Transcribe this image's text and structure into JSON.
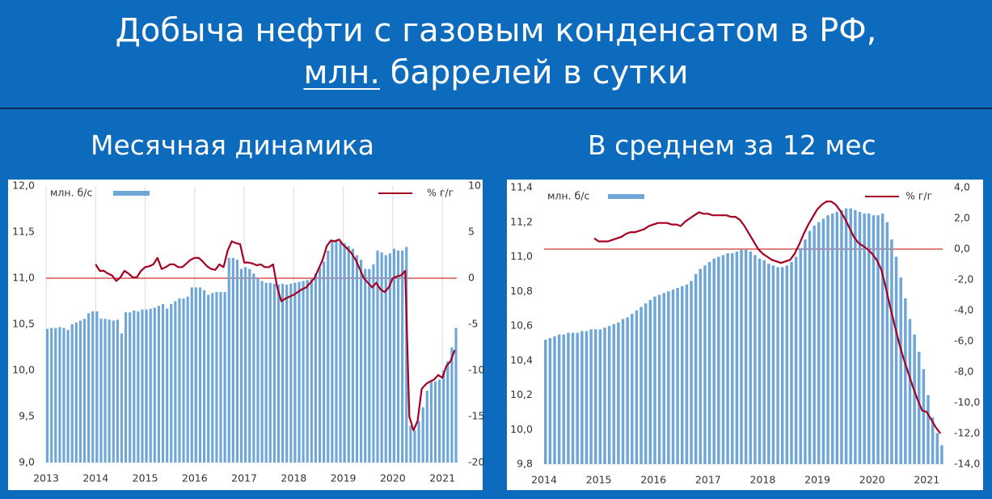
{
  "header": {
    "title_line1": "Добыча нефти с газовым конденсатом в РФ,",
    "title_unit": "млн.",
    "title_rest": "баррелей в сутки"
  },
  "chart_data": [
    {
      "type": "bar_line",
      "title": "Месячная динамика",
      "xgrid": true,
      "categories": [
        "2013",
        null,
        null,
        null,
        null,
        null,
        null,
        null,
        null,
        null,
        null,
        null,
        "2014",
        null,
        null,
        null,
        null,
        null,
        null,
        null,
        null,
        null,
        null,
        null,
        "2015",
        null,
        null,
        null,
        null,
        null,
        null,
        null,
        null,
        null,
        null,
        null,
        "2016",
        null,
        null,
        null,
        null,
        null,
        null,
        null,
        null,
        null,
        null,
        null,
        "2017",
        null,
        null,
        null,
        null,
        null,
        null,
        null,
        null,
        null,
        null,
        null,
        "2018",
        null,
        null,
        null,
        null,
        null,
        null,
        null,
        null,
        null,
        null,
        null,
        "2019",
        null,
        null,
        null,
        null,
        null,
        null,
        null,
        null,
        null,
        null,
        null,
        "2020",
        null,
        null,
        null,
        null,
        null,
        null,
        null,
        null,
        null,
        null,
        null,
        "2021",
        null,
        null,
        null
      ],
      "series": [
        {
          "name": "млн. б/с",
          "color": "#6fa6d8",
          "values": [
            10.45,
            10.46,
            10.46,
            10.47,
            10.46,
            10.44,
            10.5,
            10.52,
            10.54,
            10.56,
            10.62,
            10.64,
            10.64,
            10.56,
            10.56,
            10.55,
            10.54,
            10.55,
            10.4,
            10.63,
            10.63,
            10.65,
            10.64,
            10.66,
            10.66,
            10.67,
            10.68,
            10.7,
            10.72,
            10.67,
            10.72,
            10.75,
            10.78,
            10.78,
            10.8,
            10.9,
            10.9,
            10.9,
            10.87,
            10.82,
            10.84,
            10.85,
            10.85,
            10.85,
            11.22,
            11.22,
            11.2,
            11.1,
            11.12,
            11.1,
            11.05,
            11.0,
            10.97,
            10.95,
            10.95,
            10.94,
            10.93,
            10.94,
            10.93,
            10.94,
            10.95,
            10.96,
            10.97,
            10.98,
            10.99,
            11.05,
            11.12,
            11.18,
            11.3,
            11.4,
            11.42,
            11.4,
            11.38,
            11.35,
            11.32,
            11.25,
            11.2,
            11.1,
            11.1,
            11.15,
            11.3,
            11.28,
            11.25,
            11.27,
            11.32,
            11.3,
            11.3,
            11.34,
            9.4,
            9.35,
            9.45,
            9.6,
            9.78,
            9.88,
            9.88,
            9.9,
            10.0,
            10.1,
            10.25,
            10.46
          ]
        },
        {
          "name": "% г/г",
          "color": "#a50021",
          "axis": "y2",
          "values": [
            null,
            null,
            null,
            null,
            null,
            null,
            null,
            null,
            null,
            null,
            null,
            null,
            1.5,
            0.8,
            0.8,
            0.5,
            0.3,
            -0.3,
            0.1,
            0.8,
            0.5,
            0.1,
            0.1,
            0.8,
            1.2,
            1.3,
            1.5,
            2.2,
            1.0,
            1.2,
            1.5,
            1.5,
            1.2,
            1.2,
            1.6,
            2.0,
            2.2,
            2.2,
            1.8,
            1.3,
            1.0,
            0.9,
            1.5,
            1.2,
            3.0,
            4.0,
            3.8,
            3.7,
            1.7,
            1.7,
            1.6,
            1.4,
            1.5,
            1.2,
            1.2,
            1.5,
            -1.0,
            -2.5,
            -2.2,
            -2.0,
            -1.8,
            -1.5,
            -1.2,
            -1.0,
            -0.5,
            0.0,
            1.0,
            2.0,
            3.5,
            4.1,
            4.0,
            4.2,
            3.6,
            3.2,
            2.7,
            2.0,
            1.0,
            0.0,
            -0.5,
            -1.0,
            -0.5,
            -1.2,
            -1.5,
            -1.0,
            0.0,
            0.2,
            0.3,
            0.8,
            -15.0,
            -16.5,
            -15.5,
            -12.0,
            -11.5,
            -11.2,
            -11.0,
            -10.5,
            -10.8,
            -9.5,
            -9.0,
            -7.8
          ]
        }
      ],
      "ylim": [
        9.0,
        12.0
      ],
      "yticks": [
        {
          "value": 9.0,
          "label": "9,0"
        },
        {
          "value": 9.5,
          "label": "9,5"
        },
        {
          "value": 10.0,
          "label": "10,0"
        },
        {
          "value": 10.5,
          "label": "10,5"
        },
        {
          "value": 11.0,
          "label": "11,0"
        },
        {
          "value": 11.5,
          "label": "11,5"
        },
        {
          "value": 12.0,
          "label": "12,0"
        }
      ],
      "y2lim": [
        -20,
        10
      ],
      "y2ticks": [
        -20,
        -15,
        -10,
        -5,
        0,
        5,
        10
      ]
    },
    {
      "type": "bar_line",
      "title": "В среднем за 12 мес",
      "xgrid": false,
      "categories": [
        "2014",
        null,
        null,
        null,
        null,
        null,
        null,
        null,
        null,
        null,
        null,
        null,
        "2015",
        null,
        null,
        null,
        null,
        null,
        null,
        null,
        null,
        null,
        null,
        null,
        "2016",
        null,
        null,
        null,
        null,
        null,
        null,
        null,
        null,
        null,
        null,
        null,
        "2017",
        null,
        null,
        null,
        null,
        null,
        null,
        null,
        null,
        null,
        null,
        null,
        "2018",
        null,
        null,
        null,
        null,
        null,
        null,
        null,
        null,
        null,
        null,
        null,
        "2019",
        null,
        null,
        null,
        null,
        null,
        null,
        null,
        null,
        null,
        null,
        null,
        "2020",
        null,
        null,
        null,
        null,
        null,
        null,
        null,
        null,
        null,
        null,
        null,
        "2021",
        null,
        null,
        null
      ],
      "series": [
        {
          "name": "млн. б/с",
          "color": "#6fa6d8",
          "values": [
            10.52,
            10.53,
            10.54,
            10.55,
            10.55,
            10.56,
            10.56,
            10.56,
            10.57,
            10.57,
            10.58,
            10.58,
            10.58,
            10.59,
            10.6,
            10.61,
            10.62,
            10.64,
            10.65,
            10.67,
            10.69,
            10.71,
            10.73,
            10.75,
            10.77,
            10.78,
            10.79,
            10.8,
            10.81,
            10.82,
            10.83,
            10.84,
            10.86,
            10.9,
            10.93,
            10.95,
            10.97,
            10.99,
            11.0,
            11.01,
            11.02,
            11.02,
            11.03,
            11.04,
            11.04,
            11.03,
            11.01,
            10.99,
            10.98,
            10.96,
            10.95,
            10.94,
            10.94,
            10.95,
            10.97,
            11.0,
            11.05,
            11.1,
            11.15,
            11.18,
            11.2,
            11.22,
            11.24,
            11.25,
            11.26,
            11.27,
            11.28,
            11.28,
            11.27,
            11.26,
            11.25,
            11.25,
            11.24,
            11.24,
            11.25,
            11.2,
            11.1,
            11.0,
            10.88,
            10.76,
            10.64,
            10.55,
            10.45,
            10.35,
            10.2,
            10.07,
            9.98,
            9.91
          ]
        },
        {
          "name": "% г/г",
          "color": "#a50021",
          "axis": "y2",
          "values": [
            null,
            null,
            null,
            null,
            null,
            null,
            null,
            null,
            null,
            null,
            null,
            0.7,
            0.5,
            0.5,
            0.5,
            0.6,
            0.7,
            0.8,
            1.0,
            1.1,
            1.1,
            1.2,
            1.3,
            1.5,
            1.6,
            1.7,
            1.7,
            1.7,
            1.6,
            1.6,
            1.5,
            1.8,
            2.0,
            2.2,
            2.4,
            2.3,
            2.3,
            2.2,
            2.2,
            2.2,
            2.2,
            2.1,
            2.1,
            1.9,
            1.5,
            1.0,
            0.5,
            0.0,
            -0.3,
            -0.5,
            -0.7,
            -0.8,
            -0.9,
            -0.8,
            -0.7,
            -0.3,
            0.3,
            1.0,
            1.6,
            2.1,
            2.6,
            2.9,
            3.1,
            3.1,
            2.9,
            2.5,
            2.0,
            1.4,
            0.8,
            0.4,
            0.2,
            0.0,
            -0.3,
            -0.7,
            -1.3,
            -2.5,
            -3.8,
            -5.0,
            -6.2,
            -7.2,
            -8.1,
            -9.0,
            -9.8,
            -10.5,
            -10.6,
            -11.1,
            -11.6,
            -12.0
          ]
        }
      ],
      "ylim": [
        9.8,
        11.4
      ],
      "yticks": [
        {
          "value": 9.8,
          "label": "9,8"
        },
        {
          "value": 10.0,
          "label": "10,0"
        },
        {
          "value": 10.2,
          "label": "10,2"
        },
        {
          "value": 10.4,
          "label": "10,4"
        },
        {
          "value": 10.6,
          "label": "10,6"
        },
        {
          "value": 10.8,
          "label": "10,8"
        },
        {
          "value": 11.0,
          "label": "11,0"
        },
        {
          "value": 11.2,
          "label": "11,2"
        },
        {
          "value": 11.4,
          "label": "11,4"
        }
      ],
      "y2lim": [
        -14,
        4
      ],
      "y2ticks": [
        {
          "value": -14,
          "label": "-14,0"
        },
        {
          "value": -12,
          "label": "-12,0"
        },
        {
          "value": -10,
          "label": "-10,0"
        },
        {
          "value": -8,
          "label": "-8,0"
        },
        {
          "value": -6,
          "label": "-6,0"
        },
        {
          "value": -4,
          "label": "-4,0"
        },
        {
          "value": -2,
          "label": "-2,0"
        },
        {
          "value": 0,
          "label": "0,0"
        },
        {
          "value": 2,
          "label": "2,0"
        },
        {
          "value": 4,
          "label": "4,0"
        }
      ]
    }
  ]
}
